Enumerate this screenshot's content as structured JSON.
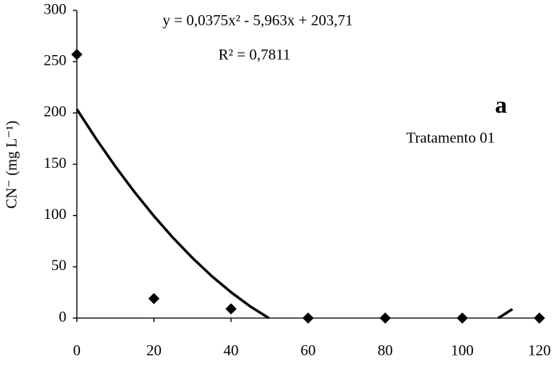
{
  "chart_data": {
    "type": "scatter",
    "ylabel": "CN⁻ (mg L⁻¹)",
    "equation": "y = 0,0375x² - 5,963x + 203,71",
    "r_squared": "R² = 0,7811",
    "panel_label": "a",
    "treatment": "Tratamento 01",
    "x": [
      0,
      20,
      40,
      60,
      80,
      100,
      120
    ],
    "values": [
      257,
      19,
      9,
      0,
      0,
      0,
      0
    ],
    "color": "#000000",
    "trendline": {
      "x": [
        0,
        5,
        10,
        15,
        20,
        25,
        30,
        35,
        40,
        45,
        49.8,
        null,
        109.3,
        110,
        113
      ],
      "values": [
        203.7,
        174.8,
        147.8,
        122.7,
        99.5,
        78.1,
        58.6,
        40.9,
        25.2,
        11.3,
        0,
        null,
        0,
        1.5,
        8.7
      ],
      "color": "#000000"
    },
    "xlim": [
      0,
      120
    ],
    "ylim": [
      0,
      300
    ],
    "xticks": [
      0,
      20,
      40,
      60,
      80,
      100,
      120
    ],
    "yticks": [
      0,
      50,
      100,
      150,
      200,
      250,
      300
    ],
    "grid": false
  }
}
